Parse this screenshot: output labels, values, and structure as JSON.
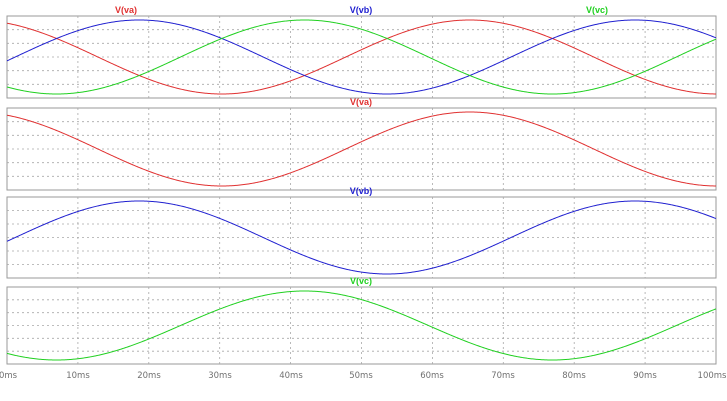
{
  "chart_data": {
    "type": "line",
    "x_unit": "ms",
    "x_range": [
      0,
      100
    ],
    "x_ticks": [
      "0ms",
      "10ms",
      "20ms",
      "30ms",
      "40ms",
      "50ms",
      "60ms",
      "70ms",
      "80ms",
      "90ms",
      "100ms"
    ],
    "grid": true,
    "signals": {
      "va": {
        "label": "V(va)",
        "color": "#e03030",
        "frequency_hz": 14.3,
        "phase_deg": 114,
        "amplitude": 1
      },
      "vb": {
        "label": "V(vb)",
        "color": "#2020d0",
        "frequency_hz": 14.3,
        "phase_deg": -6,
        "amplitude": 1
      },
      "vc": {
        "label": "V(vc)",
        "color": "#20d020",
        "frequency_hz": 14.3,
        "phase_deg": 234,
        "amplitude": 1
      }
    },
    "panes": [
      {
        "series": [
          "va",
          "vb",
          "vc"
        ]
      },
      {
        "series": [
          "va"
        ]
      },
      {
        "series": [
          "vb"
        ]
      },
      {
        "series": [
          "vc"
        ]
      }
    ]
  }
}
